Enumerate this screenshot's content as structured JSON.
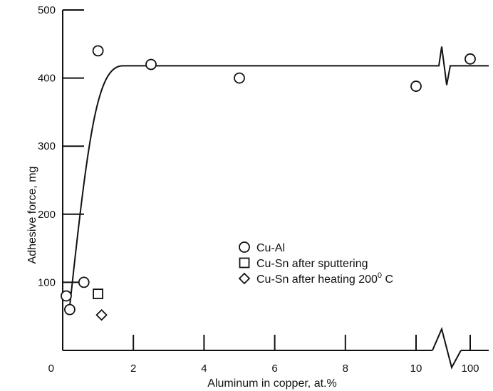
{
  "chart_data": {
    "type": "scatter",
    "xlabel": "Aluminum in copper, at.%",
    "ylabel": "Adhesive force, mg",
    "ylim": [
      0,
      500
    ],
    "x_ticks": [
      "0",
      "2",
      "4",
      "6",
      "8",
      "10",
      "100"
    ],
    "y_ticks": [
      "0",
      "100",
      "200",
      "300",
      "400",
      "500"
    ],
    "axis_break": "x between 10 and 100",
    "grid": false,
    "legend_position": "center-right",
    "series": [
      {
        "name": "Cu-Al",
        "marker": "circle",
        "points": [
          {
            "x": 0.1,
            "y": 80
          },
          {
            "x": 0.2,
            "y": 60
          },
          {
            "x": 0.6,
            "y": 100
          },
          {
            "x": 1.0,
            "y": 440
          },
          {
            "x": 2.5,
            "y": 420
          },
          {
            "x": 5.0,
            "y": 400
          },
          {
            "x": 10.0,
            "y": 388
          },
          {
            "x": 100,
            "y": 428
          }
        ]
      },
      {
        "name": "Cu-Sn after sputtering",
        "marker": "square",
        "points": [
          {
            "x": 1.0,
            "y": 83
          }
        ]
      },
      {
        "name": "Cu-Sn after heating 200° C",
        "legend_label": "Cu-Sn after heating 200",
        "legend_sup": "0",
        "legend_suffix": " C",
        "marker": "diamond",
        "points": [
          {
            "x": 1.1,
            "y": 52
          }
        ]
      }
    ],
    "fit_line": {
      "points": [
        {
          "x": 0.2,
          "y": 65
        },
        {
          "x": 0.85,
          "y": 380
        },
        {
          "x": 1.2,
          "y": 412
        },
        {
          "x": 1.7,
          "y": 418
        },
        {
          "x": 10.7,
          "y": 418
        },
        {
          "x": 100,
          "y": 418
        }
      ]
    }
  }
}
